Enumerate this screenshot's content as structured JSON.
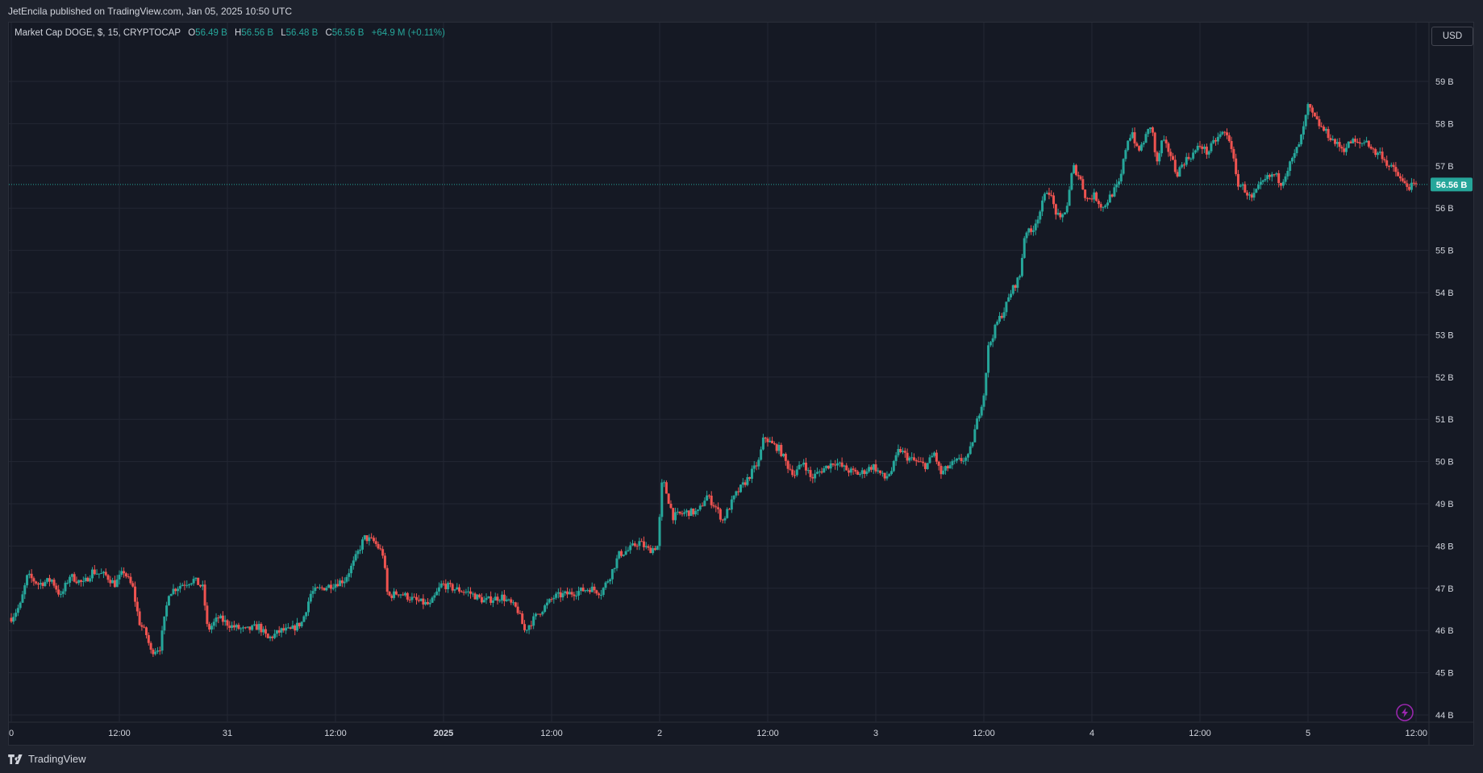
{
  "header": {
    "published_text": "JetEncila published on TradingView.com, Jan 05, 2025 10:50 UTC"
  },
  "legend": {
    "symbol": "Market Cap DOGE, $, 15, CRYPTOCAP",
    "open_label": "O",
    "open_value": "56.49 B",
    "high_label": "H",
    "high_value": "56.56 B",
    "low_label": "L",
    "low_value": "56.48 B",
    "close_label": "C",
    "close_value": "56.56 B",
    "change": "+64.9 M (+0.11%)"
  },
  "currency_button": "USD",
  "last_price_label": "56.56 B",
  "brand": {
    "name": "TradingView"
  },
  "icons": {
    "alert": "lightning-icon",
    "logo": "tradingview-logo-icon"
  },
  "colors": {
    "background": "#151924",
    "up": "#26a69a",
    "down": "#ef5350",
    "grid": "#232733",
    "accent": "#26a69a",
    "alert": "#9c27b0"
  },
  "chart_data": {
    "type": "candlestick",
    "title": "Market Cap DOGE, $, 15, CRYPTOCAP",
    "ylabel": "",
    "xlabel": "",
    "y_unit": "B",
    "ylim": [
      43.85,
      60.3
    ],
    "yticks": [
      44,
      45,
      46,
      47,
      48,
      49,
      50,
      51,
      52,
      53,
      54,
      55,
      56,
      57,
      58,
      59
    ],
    "ytick_labels": [
      "44 B",
      "45 B",
      "46 B",
      "47 B",
      "48 B",
      "49 B",
      "50 B",
      "51 B",
      "52 B",
      "53 B",
      "54 B",
      "55 B",
      "56 B",
      "57 B",
      "58 B",
      "59 B"
    ],
    "xticks": [
      {
        "label": "0",
        "t": 0
      },
      {
        "label": "12:00",
        "t": 12
      },
      {
        "label": "31",
        "t": 24
      },
      {
        "label": "12:00",
        "t": 36
      },
      {
        "label": "2025",
        "t": 48
      },
      {
        "label": "12:00",
        "t": 60
      },
      {
        "label": "2",
        "t": 72
      },
      {
        "label": "12:00",
        "t": 84
      },
      {
        "label": "3",
        "t": 96
      },
      {
        "label": "12:00",
        "t": 108
      },
      {
        "label": "4",
        "t": 120
      },
      {
        "label": "12:00",
        "t": 132
      },
      {
        "label": "5",
        "t": 144
      },
      {
        "label": "12:00",
        "t": 156
      }
    ],
    "xlim_hours": [
      0,
      156
    ],
    "last_price": 56.56,
    "grid": true,
    "close_path": [
      [
        0,
        46.3
      ],
      [
        1,
        46.6
      ],
      [
        1.8,
        47.3
      ],
      [
        3,
        47.1
      ],
      [
        4.5,
        47.2
      ],
      [
        5.5,
        46.8
      ],
      [
        6.5,
        47.3
      ],
      [
        8,
        47.1
      ],
      [
        9,
        47.4
      ],
      [
        10.5,
        47.3
      ],
      [
        11.5,
        47.1
      ],
      [
        12.5,
        47.4
      ],
      [
        13.5,
        47.0
      ],
      [
        14.2,
        46.2
      ],
      [
        15,
        45.9
      ],
      [
        15.5,
        45.5
      ],
      [
        16.5,
        45.6
      ],
      [
        17.5,
        46.9
      ],
      [
        19,
        47.1
      ],
      [
        20.3,
        47.2
      ],
      [
        21.3,
        47.0
      ],
      [
        21.8,
        46.0
      ],
      [
        23,
        46.3
      ],
      [
        24.5,
        46.1
      ],
      [
        26,
        46.0
      ],
      [
        27.5,
        46.1
      ],
      [
        28.5,
        45.8
      ],
      [
        30,
        46.0
      ],
      [
        31,
        46.0
      ],
      [
        32.3,
        46.2
      ],
      [
        33.3,
        46.9
      ],
      [
        34.5,
        47.0
      ],
      [
        35.8,
        47.1
      ],
      [
        37,
        47.2
      ],
      [
        38,
        47.6
      ],
      [
        39.2,
        48.2
      ],
      [
        40.3,
        48.1
      ],
      [
        41.3,
        47.8
      ],
      [
        41.8,
        46.8
      ],
      [
        43,
        46.9
      ],
      [
        45,
        46.7
      ],
      [
        46.5,
        46.6
      ],
      [
        47.8,
        47.1
      ],
      [
        49,
        47.0
      ],
      [
        50.8,
        46.9
      ],
      [
        52.5,
        46.7
      ],
      [
        54.5,
        46.8
      ],
      [
        56.2,
        46.5
      ],
      [
        57,
        46.0
      ],
      [
        58.5,
        46.4
      ],
      [
        60.3,
        46.8
      ],
      [
        62.5,
        46.9
      ],
      [
        64.3,
        47.0
      ],
      [
        65.5,
        46.9
      ],
      [
        66.5,
        47.3
      ],
      [
        67.5,
        47.8
      ],
      [
        68.5,
        47.9
      ],
      [
        69.7,
        48.1
      ],
      [
        70.8,
        47.9
      ],
      [
        71.8,
        48.0
      ],
      [
        72.3,
        49.6
      ],
      [
        73.5,
        48.7
      ],
      [
        75,
        48.8
      ],
      [
        76.3,
        48.8
      ],
      [
        77.2,
        49.2
      ],
      [
        78.3,
        48.9
      ],
      [
        79,
        48.6
      ],
      [
        80.4,
        49.2
      ],
      [
        81.8,
        49.6
      ],
      [
        83,
        50.0
      ],
      [
        83.6,
        50.6
      ],
      [
        84.5,
        50.4
      ],
      [
        85.3,
        50.3
      ],
      [
        86.2,
        49.9
      ],
      [
        87,
        49.7
      ],
      [
        88,
        50.0
      ],
      [
        88.8,
        49.6
      ],
      [
        90,
        49.8
      ],
      [
        91.4,
        50.0
      ],
      [
        92.8,
        49.8
      ],
      [
        94.2,
        49.7
      ],
      [
        95.7,
        49.9
      ],
      [
        97,
        49.6
      ],
      [
        97.8,
        49.8
      ],
      [
        98.6,
        50.3
      ],
      [
        99.5,
        50.1
      ],
      [
        100.4,
        50.0
      ],
      [
        101.6,
        49.9
      ],
      [
        102.5,
        50.2
      ],
      [
        103.2,
        49.7
      ],
      [
        104.2,
        49.9
      ],
      [
        105,
        50.0
      ],
      [
        106.3,
        50.1
      ],
      [
        107.3,
        51.0
      ],
      [
        108,
        51.6
      ],
      [
        108.5,
        52.7
      ],
      [
        109.5,
        53.3
      ],
      [
        110.3,
        53.6
      ],
      [
        111,
        54.0
      ],
      [
        112,
        54.4
      ],
      [
        112.6,
        55.5
      ],
      [
        113.2,
        55.4
      ],
      [
        114.2,
        55.9
      ],
      [
        115.1,
        56.5
      ],
      [
        116,
        55.9
      ],
      [
        116.5,
        55.7
      ],
      [
        117.3,
        56.1
      ],
      [
        117.9,
        57.0
      ],
      [
        118.7,
        56.7
      ],
      [
        119.4,
        56.2
      ],
      [
        120.3,
        56.3
      ],
      [
        121.2,
        56.0
      ],
      [
        122.1,
        56.3
      ],
      [
        123.1,
        56.6
      ],
      [
        123.9,
        57.6
      ],
      [
        124.5,
        57.8
      ],
      [
        125.1,
        57.3
      ],
      [
        126,
        57.7
      ],
      [
        126.6,
        58.0
      ],
      [
        127.2,
        57.0
      ],
      [
        127.8,
        57.6
      ],
      [
        128.7,
        57.3
      ],
      [
        129.4,
        56.8
      ],
      [
        130.2,
        57.1
      ],
      [
        131.3,
        57.3
      ],
      [
        132.1,
        57.5
      ],
      [
        132.8,
        57.3
      ],
      [
        133.7,
        57.6
      ],
      [
        134.6,
        57.8
      ],
      [
        135.4,
        57.6
      ],
      [
        136.1,
        56.6
      ],
      [
        136.8,
        56.5
      ],
      [
        137.7,
        56.2
      ],
      [
        138.6,
        56.5
      ],
      [
        139.4,
        56.7
      ],
      [
        140.3,
        56.8
      ],
      [
        141,
        56.6
      ],
      [
        141.9,
        57.0
      ],
      [
        142.6,
        57.3
      ],
      [
        143.3,
        57.7
      ],
      [
        144,
        58.4
      ],
      [
        144.8,
        58.1
      ],
      [
        145.5,
        57.9
      ],
      [
        146.4,
        57.7
      ],
      [
        147.2,
        57.5
      ],
      [
        148,
        57.4
      ],
      [
        148.9,
        57.6
      ],
      [
        149.6,
        57.5
      ],
      [
        150.5,
        57.6
      ],
      [
        151.4,
        57.3
      ],
      [
        152.1,
        57.3
      ],
      [
        152.9,
        57.0
      ],
      [
        153.6,
        56.9
      ],
      [
        154.5,
        56.6
      ],
      [
        155.3,
        56.5
      ],
      [
        156.2,
        56.56
      ]
    ]
  }
}
